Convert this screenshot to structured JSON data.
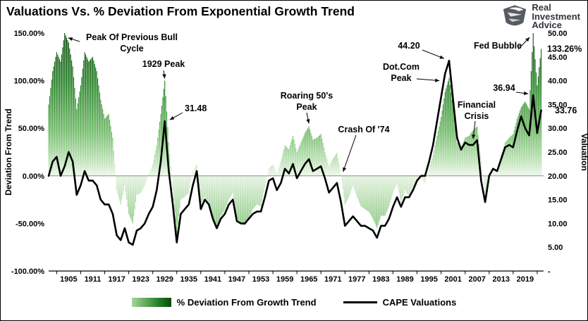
{
  "title": "Valuations Vs. % Deviation From Exponential Growth Trend",
  "logo": {
    "name": "Real Investment Advice",
    "lines": [
      "Real",
      "Investment",
      "Advice"
    ]
  },
  "left_axis": {
    "title": "Deviation From Trend",
    "ticks": [
      "150.00%",
      "100.00%",
      "50.00%",
      "0.00%",
      "-50.00%",
      "-100.00%"
    ]
  },
  "right_axis": {
    "title": "Valuation",
    "ticks": [
      "50.00",
      "45.00",
      "40.00",
      "35.00",
      "30.00",
      "25.00",
      "20.00",
      "15.00",
      "10.00",
      "5.00",
      "-"
    ]
  },
  "x_axis": {
    "ticks": [
      "1905",
      "1911",
      "1917",
      "1923",
      "1929",
      "1935",
      "1941",
      "1947",
      "1953",
      "1959",
      "1965",
      "1971",
      "1977",
      "1983",
      "1989",
      "1995",
      "2001",
      "2007",
      "2013",
      "2019"
    ]
  },
  "legend": [
    {
      "label": "% Deviation From Growth Trend",
      "swatch": "green-gradient"
    },
    {
      "label": "CAPE Valuations",
      "swatch": "black-line"
    }
  ],
  "annotations": [
    {
      "id": "prev-bull-peak",
      "lines": [
        "Peak Of Previous Bull",
        "Cycle"
      ],
      "target_year": 1904,
      "target_value": 148,
      "axis": "left"
    },
    {
      "id": "peak-1929",
      "lines": [
        "1929 Peak"
      ],
      "target_year": 1929,
      "target_value": 100,
      "axis": "left"
    },
    {
      "id": "cape-1929",
      "lines": [
        "31.48"
      ],
      "target_year": 1929,
      "target_value": 31.48,
      "axis": "right"
    },
    {
      "id": "roaring-50s",
      "lines": [
        "Roaring 50's",
        "Peak"
      ],
      "target_year": 1965,
      "target_value": 52,
      "axis": "left"
    },
    {
      "id": "crash-74",
      "lines": [
        "Crash Of '74"
      ],
      "target_year": 1973,
      "target_value": 2,
      "axis": "left"
    },
    {
      "id": "dotcom-peak",
      "lines": [
        "Dot.Com",
        "Peak"
      ],
      "target_year": 1999,
      "target_value": 40,
      "axis": "right"
    },
    {
      "id": "cape-2000",
      "lines": [
        "44.20"
      ],
      "target_year": 2000,
      "target_value": 44.2,
      "axis": "right"
    },
    {
      "id": "financial-crisis",
      "lines": [
        "Financial",
        "Crisis"
      ],
      "target_year": 2006,
      "target_value": 27,
      "axis": "right"
    },
    {
      "id": "fed-bubble",
      "lines": [
        "Fed Bubble"
      ],
      "target_year": 2021,
      "target_value": 150,
      "axis": "left"
    },
    {
      "id": "cape-2021",
      "lines": [
        "36.94"
      ],
      "target_year": 2021,
      "target_value": 36.94,
      "axis": "right"
    },
    {
      "id": "latest-deviation",
      "lines": [
        "133.26%"
      ],
      "target_year": 2023,
      "target_value": 133.26,
      "axis": "left",
      "color": "#FF0000"
    },
    {
      "id": "latest-cape",
      "lines": [
        "33.76"
      ],
      "target_year": 2023,
      "target_value": 33.76,
      "axis": "right",
      "color": "#FF0000"
    }
  ],
  "chart_data": {
    "type": "combo",
    "x_start": 1900,
    "x_step": 1,
    "left_ylim": [
      -100,
      150
    ],
    "right_ylim": [
      0,
      50
    ],
    "grid": false,
    "legend_position": "bottom",
    "series": [
      {
        "name": "% Deviation From Growth Trend",
        "type": "bar",
        "axis": "left",
        "unit": "%",
        "color_scale": [
          "#0a4a0e",
          "#ecf6e9"
        ],
        "values": [
          75,
          110,
          130,
          120,
          150,
          140,
          115,
          70,
          95,
          130,
          120,
          125,
          110,
          80,
          60,
          65,
          40,
          -15,
          -30,
          -10,
          -40,
          -50,
          -20,
          -18,
          -10,
          2,
          12,
          32,
          65,
          100,
          35,
          -15,
          -60,
          -25,
          -22,
          -18,
          5,
          12,
          -30,
          -22,
          -32,
          -48,
          -55,
          -42,
          -36,
          -25,
          -18,
          -45,
          -50,
          -52,
          -45,
          -35,
          -30,
          -32,
          -12,
          8,
          12,
          2,
          15,
          32,
          28,
          42,
          25,
          35,
          45,
          52,
          38,
          40,
          44,
          25,
          10,
          18,
          24,
          2,
          -30,
          -22,
          -10,
          -22,
          -32,
          -35,
          -38,
          -45,
          -55,
          -42,
          -42,
          -32,
          -18,
          -8,
          -28,
          -15,
          -22,
          -12,
          -6,
          -2,
          -8,
          8,
          22,
          42,
          62,
          88,
          103,
          72,
          35,
          30,
          40,
          42,
          48,
          52,
          15,
          -18,
          2,
          8,
          6,
          22,
          35,
          40,
          44,
          60,
          72,
          78,
          70,
          150,
          95,
          133.26
        ]
      },
      {
        "name": "CAPE Valuations",
        "type": "line",
        "axis": "right",
        "color": "#000000",
        "values": [
          20,
          23,
          24,
          20,
          22,
          25,
          23,
          16,
          18,
          21,
          19,
          19,
          18,
          15,
          14,
          14,
          12,
          7.5,
          6.5,
          9,
          6,
          5.5,
          8.5,
          9,
          10,
          12,
          13.5,
          17,
          23,
          31.48,
          21,
          14,
          6,
          12,
          13,
          14,
          18,
          21,
          13,
          15,
          14,
          11,
          9,
          11,
          12,
          14,
          15,
          10.5,
          10,
          10,
          11,
          12,
          12.5,
          12.5,
          15.5,
          19,
          19.5,
          17,
          18.5,
          21.5,
          20.5,
          22.5,
          19.5,
          21,
          22.5,
          23.5,
          21,
          21.5,
          22,
          19.5,
          16.5,
          17.5,
          18.5,
          14.5,
          9.5,
          10.5,
          11.5,
          10.5,
          9.5,
          9.5,
          9,
          8.5,
          7,
          9.5,
          9.5,
          11,
          13.5,
          15.5,
          13.5,
          15.5,
          15.5,
          17,
          19,
          20,
          20,
          23,
          26.5,
          31.5,
          36.5,
          41.5,
          44.2,
          36,
          28,
          25.5,
          27,
          26.5,
          26.5,
          27.5,
          19,
          14.5,
          20,
          21.5,
          21,
          23.5,
          26,
          26.5,
          26,
          29.5,
          32.5,
          30,
          28.5,
          36.94,
          29,
          33.76
        ]
      }
    ],
    "highlights": {
      "deviation_latest": "133.26%",
      "cape_latest": "33.76"
    }
  }
}
